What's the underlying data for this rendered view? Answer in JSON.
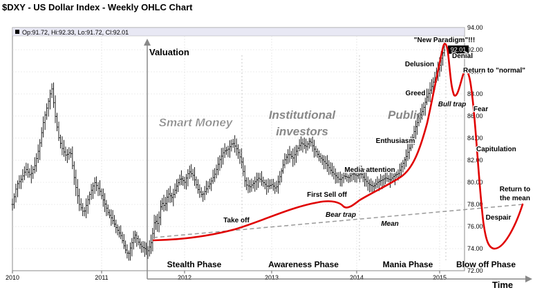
{
  "chart_data": {
    "type": "ohlc",
    "title": "$DXY - US Dollar Index - Weekly OHLC Chart",
    "info_bar": "Op:91.72, Hi:92.33, Lo:91.72, Cl:92.01",
    "last_price_label": "92.01",
    "x_ticks": [
      "2010",
      "2011",
      "2012",
      "2013",
      "2014",
      "2015"
    ],
    "y_ticks": [
      "72.00",
      "74.00",
      "76.00",
      "78.00",
      "80.00",
      "82.00",
      "84.00",
      "86.00",
      "88.00",
      "90.00",
      "92.00",
      "94.00"
    ],
    "ylim": [
      72,
      94
    ],
    "xlim": [
      2010.0,
      2015.4
    ],
    "price_series": [
      [
        2010.0,
        78.0
      ],
      [
        2010.05,
        79.8
      ],
      [
        2010.1,
        80.3
      ],
      [
        2010.15,
        81.2
      ],
      [
        2010.2,
        80.6
      ],
      [
        2010.25,
        81.5
      ],
      [
        2010.3,
        83.2
      ],
      [
        2010.35,
        85.6
      ],
      [
        2010.4,
        87.2
      ],
      [
        2010.44,
        88.6
      ],
      [
        2010.48,
        86.0
      ],
      [
        2010.52,
        84.0
      ],
      [
        2010.56,
        83.0
      ],
      [
        2010.6,
        82.4
      ],
      [
        2010.65,
        82.8
      ],
      [
        2010.7,
        80.0
      ],
      [
        2010.75,
        78.0
      ],
      [
        2010.8,
        77.2
      ],
      [
        2010.86,
        78.8
      ],
      [
        2010.92,
        80.0
      ],
      [
        2010.98,
        79.2
      ],
      [
        2011.03,
        78.2
      ],
      [
        2011.08,
        77.2
      ],
      [
        2011.13,
        76.6
      ],
      [
        2011.18,
        75.8
      ],
      [
        2011.23,
        75.2
      ],
      [
        2011.28,
        74.0
      ],
      [
        2011.32,
        73.4
      ],
      [
        2011.36,
        74.4
      ],
      [
        2011.4,
        75.3
      ],
      [
        2011.44,
        74.6
      ],
      [
        2011.48,
        74.2
      ],
      [
        2011.52,
        74.0
      ],
      [
        2011.56,
        73.8
      ],
      [
        2011.6,
        74.6
      ],
      [
        2011.64,
        76.6
      ],
      [
        2011.68,
        76.2
      ],
      [
        2011.72,
        78.2
      ],
      [
        2011.76,
        77.8
      ],
      [
        2011.8,
        79.0
      ],
      [
        2011.85,
        78.6
      ],
      [
        2011.9,
        79.6
      ],
      [
        2011.95,
        80.4
      ],
      [
        2012.0,
        80.0
      ],
      [
        2012.05,
        81.0
      ],
      [
        2012.1,
        80.6
      ],
      [
        2012.15,
        79.4
      ],
      [
        2012.2,
        78.8
      ],
      [
        2012.25,
        79.4
      ],
      [
        2012.3,
        80.0
      ],
      [
        2012.35,
        80.8
      ],
      [
        2012.4,
        82.0
      ],
      [
        2012.45,
        82.8
      ],
      [
        2012.5,
        83.0
      ],
      [
        2012.55,
        83.6
      ],
      [
        2012.6,
        83.0
      ],
      [
        2012.65,
        82.0
      ],
      [
        2012.7,
        79.8
      ],
      [
        2012.75,
        79.6
      ],
      [
        2012.8,
        80.0
      ],
      [
        2012.85,
        80.4
      ],
      [
        2012.9,
        80.0
      ],
      [
        2012.95,
        79.6
      ],
      [
        2013.0,
        79.8
      ],
      [
        2013.05,
        79.4
      ],
      [
        2013.1,
        80.6
      ],
      [
        2013.15,
        82.0
      ],
      [
        2013.2,
        82.6
      ],
      [
        2013.25,
        82.2
      ],
      [
        2013.3,
        83.0
      ],
      [
        2013.35,
        83.6
      ],
      [
        2013.4,
        83.2
      ],
      [
        2013.45,
        83.8
      ],
      [
        2013.5,
        83.0
      ],
      [
        2013.55,
        82.4
      ],
      [
        2013.6,
        82.0
      ],
      [
        2013.65,
        81.6
      ],
      [
        2013.7,
        81.0
      ],
      [
        2013.75,
        80.6
      ],
      [
        2013.8,
        80.2
      ],
      [
        2013.85,
        80.6
      ],
      [
        2013.9,
        80.4
      ],
      [
        2013.95,
        80.8
      ],
      [
        2014.0,
        80.6
      ],
      [
        2014.05,
        80.8
      ],
      [
        2014.1,
        80.2
      ],
      [
        2014.15,
        79.8
      ],
      [
        2014.2,
        79.6
      ],
      [
        2014.25,
        80.0
      ],
      [
        2014.3,
        80.2
      ],
      [
        2014.35,
        80.4
      ],
      [
        2014.4,
        80.2
      ],
      [
        2014.45,
        80.6
      ],
      [
        2014.5,
        80.8
      ],
      [
        2014.55,
        81.6
      ],
      [
        2014.6,
        82.4
      ],
      [
        2014.65,
        83.4
      ],
      [
        2014.7,
        84.8
      ],
      [
        2014.75,
        85.8
      ],
      [
        2014.8,
        86.6
      ],
      [
        2014.85,
        87.8
      ],
      [
        2014.9,
        88.6
      ],
      [
        2014.95,
        89.6
      ],
      [
        2015.0,
        90.6
      ],
      [
        2015.03,
        91.6
      ],
      [
        2015.06,
        92.01
      ]
    ],
    "annotation": {
      "axis_y_label": "Valuation",
      "axis_x_label": "Time",
      "phase_labels": [
        "Stealth Phase",
        "Awareness Phase",
        "Mania Phase",
        "Blow off Phase"
      ],
      "investor_labels": [
        "Smart Money",
        "Institutional\ninvestors",
        "Public"
      ],
      "event_labels": [
        "\"New Paradigm\"!!!",
        "Delusion",
        "Denial",
        "Return to \"normal\"",
        "Greed",
        "Bull trap",
        "Fear",
        "Enthusiasm",
        "Capitulation",
        "Media attention",
        "Return to\nthe mean",
        "First Sell off",
        "Take off",
        "Bear trap",
        "Mean",
        "Despair"
      ]
    }
  }
}
